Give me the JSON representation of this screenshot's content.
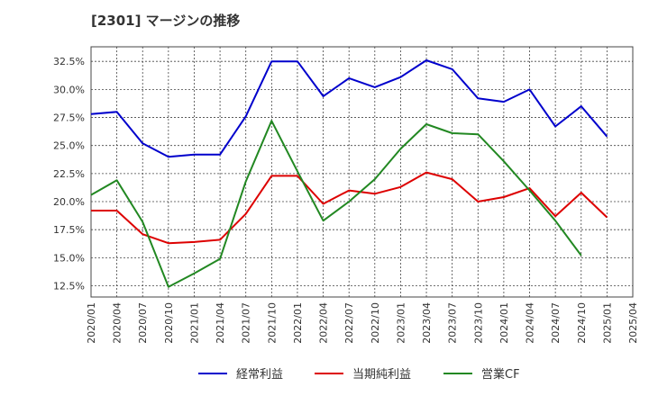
{
  "chart_data": {
    "type": "line",
    "title": "[2301]  マージンの推移",
    "xlabel": "",
    "ylabel": "",
    "categories": [
      "2020/01",
      "2020/04",
      "2020/07",
      "2020/10",
      "2021/01",
      "2021/04",
      "2021/07",
      "2021/10",
      "2022/01",
      "2022/04",
      "2022/07",
      "2022/10",
      "2023/01",
      "2023/04",
      "2023/07",
      "2023/10",
      "2024/01",
      "2024/04",
      "2024/07",
      "2024/10",
      "2025/01",
      "2025/04"
    ],
    "y_ticks": [
      "12.5%",
      "15.0%",
      "17.5%",
      "20.0%",
      "22.5%",
      "25.0%",
      "27.5%",
      "30.0%",
      "32.5%"
    ],
    "ylim": [
      11.5,
      33.8
    ],
    "grid": true,
    "legend_position": "bottom",
    "series": [
      {
        "name": "経常利益",
        "color": "#0000cc",
        "values": [
          27.8,
          28.0,
          25.2,
          24.0,
          24.2,
          24.2,
          27.6,
          32.5,
          32.5,
          29.4,
          31.0,
          30.2,
          31.1,
          32.6,
          31.8,
          29.2,
          28.9,
          30.0,
          26.7,
          28.5,
          25.8,
          null
        ]
      },
      {
        "name": "当期純利益",
        "color": "#dd0000",
        "values": [
          19.2,
          19.2,
          17.1,
          16.3,
          16.4,
          16.6,
          18.9,
          22.3,
          22.3,
          19.8,
          21.0,
          20.7,
          21.3,
          22.6,
          22.0,
          20.0,
          20.4,
          21.2,
          18.7,
          20.8,
          18.6,
          null
        ]
      },
      {
        "name": "営業CF",
        "color": "#228822",
        "values": [
          20.6,
          21.9,
          18.2,
          12.4,
          13.6,
          14.9,
          21.8,
          27.2,
          22.7,
          18.3,
          20.0,
          22.0,
          24.7,
          26.9,
          26.1,
          26.0,
          23.6,
          21.0,
          18.3,
          15.2,
          null,
          null
        ]
      }
    ]
  }
}
